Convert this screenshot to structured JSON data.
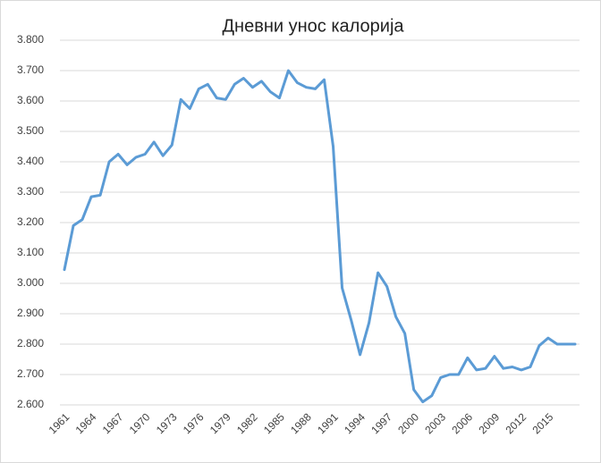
{
  "chart_data": {
    "type": "line",
    "title": "Дневни унос калорија",
    "categories": [
      "1961",
      null,
      null,
      "1964",
      null,
      null,
      "1967",
      null,
      null,
      "1970",
      null,
      null,
      "1973",
      null,
      null,
      "1976",
      null,
      null,
      "1979",
      null,
      null,
      "1982",
      null,
      null,
      "1985",
      null,
      null,
      "1988",
      null,
      null,
      "1991",
      null,
      null,
      "1994",
      null,
      null,
      "1997",
      null,
      null,
      "2000",
      null,
      null,
      "2003",
      null,
      null,
      "2006",
      null,
      null,
      "2009",
      null,
      null,
      "2012",
      null,
      null,
      "2015",
      null,
      null,
      null
    ],
    "values": [
      3045,
      3190,
      3210,
      3285,
      3290,
      3400,
      3425,
      3390,
      3415,
      3425,
      3465,
      3420,
      3455,
      3605,
      3575,
      3640,
      3655,
      3610,
      3605,
      3655,
      3675,
      3645,
      3665,
      3630,
      3610,
      3700,
      3660,
      3645,
      3640,
      3670,
      3450,
      2985,
      2880,
      2765,
      2870,
      3035,
      2990,
      2890,
      2835,
      2650,
      2610,
      2630,
      2690,
      2700,
      2700,
      2755,
      2715,
      2720,
      2760,
      2720,
      2725,
      2715,
      2725,
      2795,
      2820,
      2800,
      2800,
      2800
    ],
    "color": "#5b9bd5",
    "ylim": [
      2600,
      3800
    ],
    "yticks": [
      {
        "value": 2600,
        "label": "2.600"
      },
      {
        "value": 2700,
        "label": "2.700"
      },
      {
        "value": 2800,
        "label": "2.800"
      },
      {
        "value": 2900,
        "label": "2.900"
      },
      {
        "value": 3000,
        "label": "3.000"
      },
      {
        "value": 3100,
        "label": "3.100"
      },
      {
        "value": 3200,
        "label": "3.200"
      },
      {
        "value": 3300,
        "label": "3.300"
      },
      {
        "value": 3400,
        "label": "3.400"
      },
      {
        "value": 3500,
        "label": "3.500"
      },
      {
        "value": 3600,
        "label": "3.600"
      },
      {
        "value": 3700,
        "label": "3.700"
      },
      {
        "value": 3800,
        "label": "3.800"
      }
    ],
    "grid": true
  }
}
